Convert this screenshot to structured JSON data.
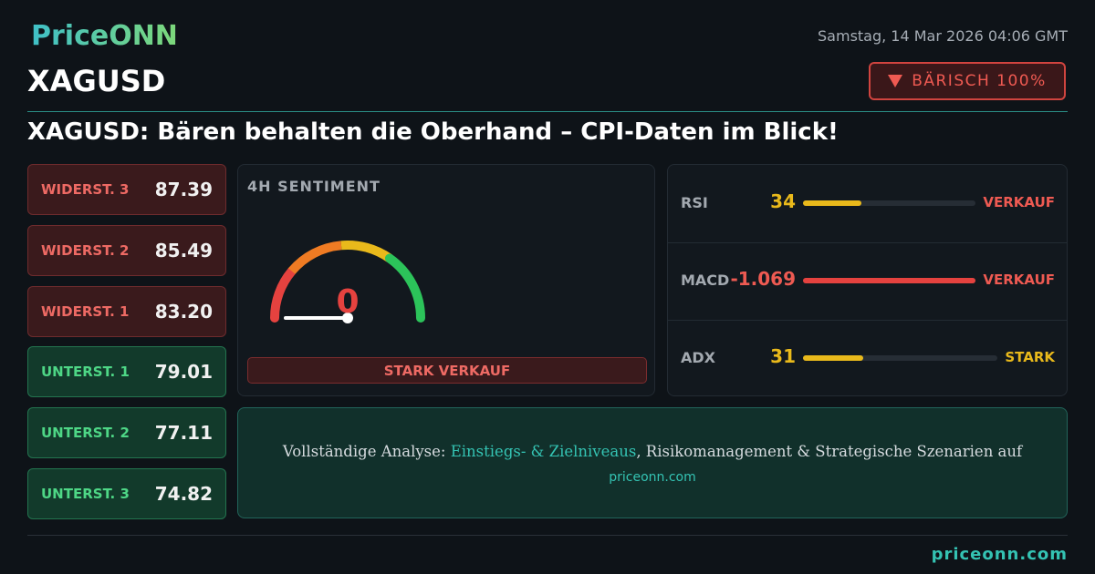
{
  "header": {
    "logo": "PriceONN",
    "date": "Samstag, 14 Mar 2026 04:06 GMT",
    "symbol": "XAGUSD",
    "badge": "BÄRISCH 100%"
  },
  "headline": "XAGUSD: Bären behalten die Oberhand – CPI-Daten im Blick!",
  "levels": [
    {
      "label": "WIDERST. 3",
      "value": "87.39"
    },
    {
      "label": "WIDERST. 2",
      "value": "85.49"
    },
    {
      "label": "WIDERST. 1",
      "value": "83.20"
    },
    {
      "label": "UNTERST. 1",
      "value": "79.01"
    },
    {
      "label": "UNTERST. 2",
      "value": "77.11"
    },
    {
      "label": "UNTERST. 3",
      "value": "74.82"
    }
  ],
  "sentiment": {
    "title": "4H SENTIMENT",
    "value": "0",
    "label": "STARK VERKAUF"
  },
  "indicators": [
    {
      "name": "RSI",
      "value": "34",
      "signal": "VERKAUF"
    },
    {
      "name": "MACD",
      "value": "-1.069",
      "signal": "VERKAUF"
    },
    {
      "name": "ADX",
      "value": "31",
      "signal": "STARK"
    }
  ],
  "cta": {
    "text_before": "Vollständige Analyse:",
    "highlight": "Einstiegs- & Zielniveaus",
    "text_after": ", Risikomanagement & Strategische Szenarien auf",
    "link": "priceonn.com"
  },
  "footer": "priceonn.com"
}
